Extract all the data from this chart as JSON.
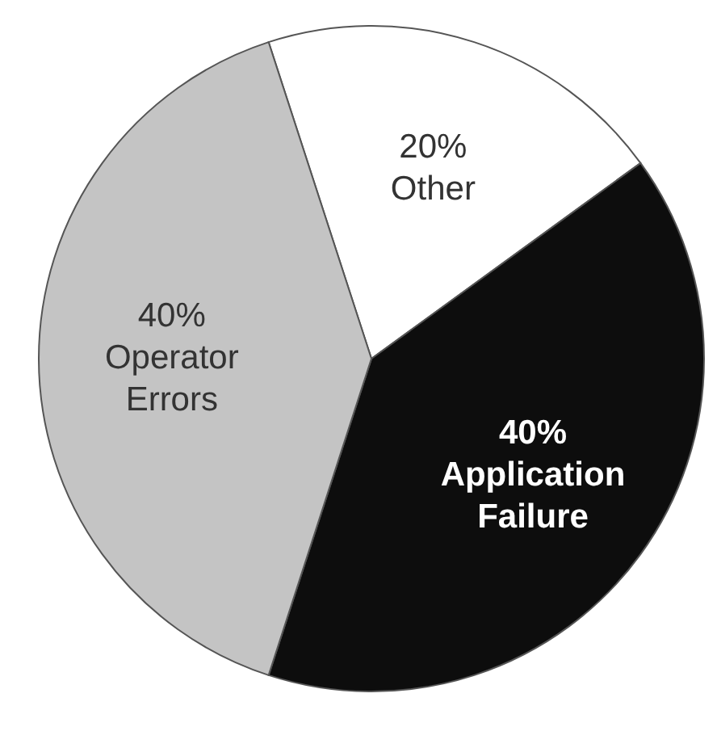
{
  "chart_data": {
    "type": "pie",
    "categories": [
      "Other",
      "Application Failure",
      "Operator Errors"
    ],
    "values": [
      20,
      40,
      40
    ],
    "value_labels": [
      "20%",
      "40%",
      "40%"
    ],
    "colors": [
      "#ffffff",
      "#0d0d0d",
      "#c4c4c4"
    ]
  }
}
